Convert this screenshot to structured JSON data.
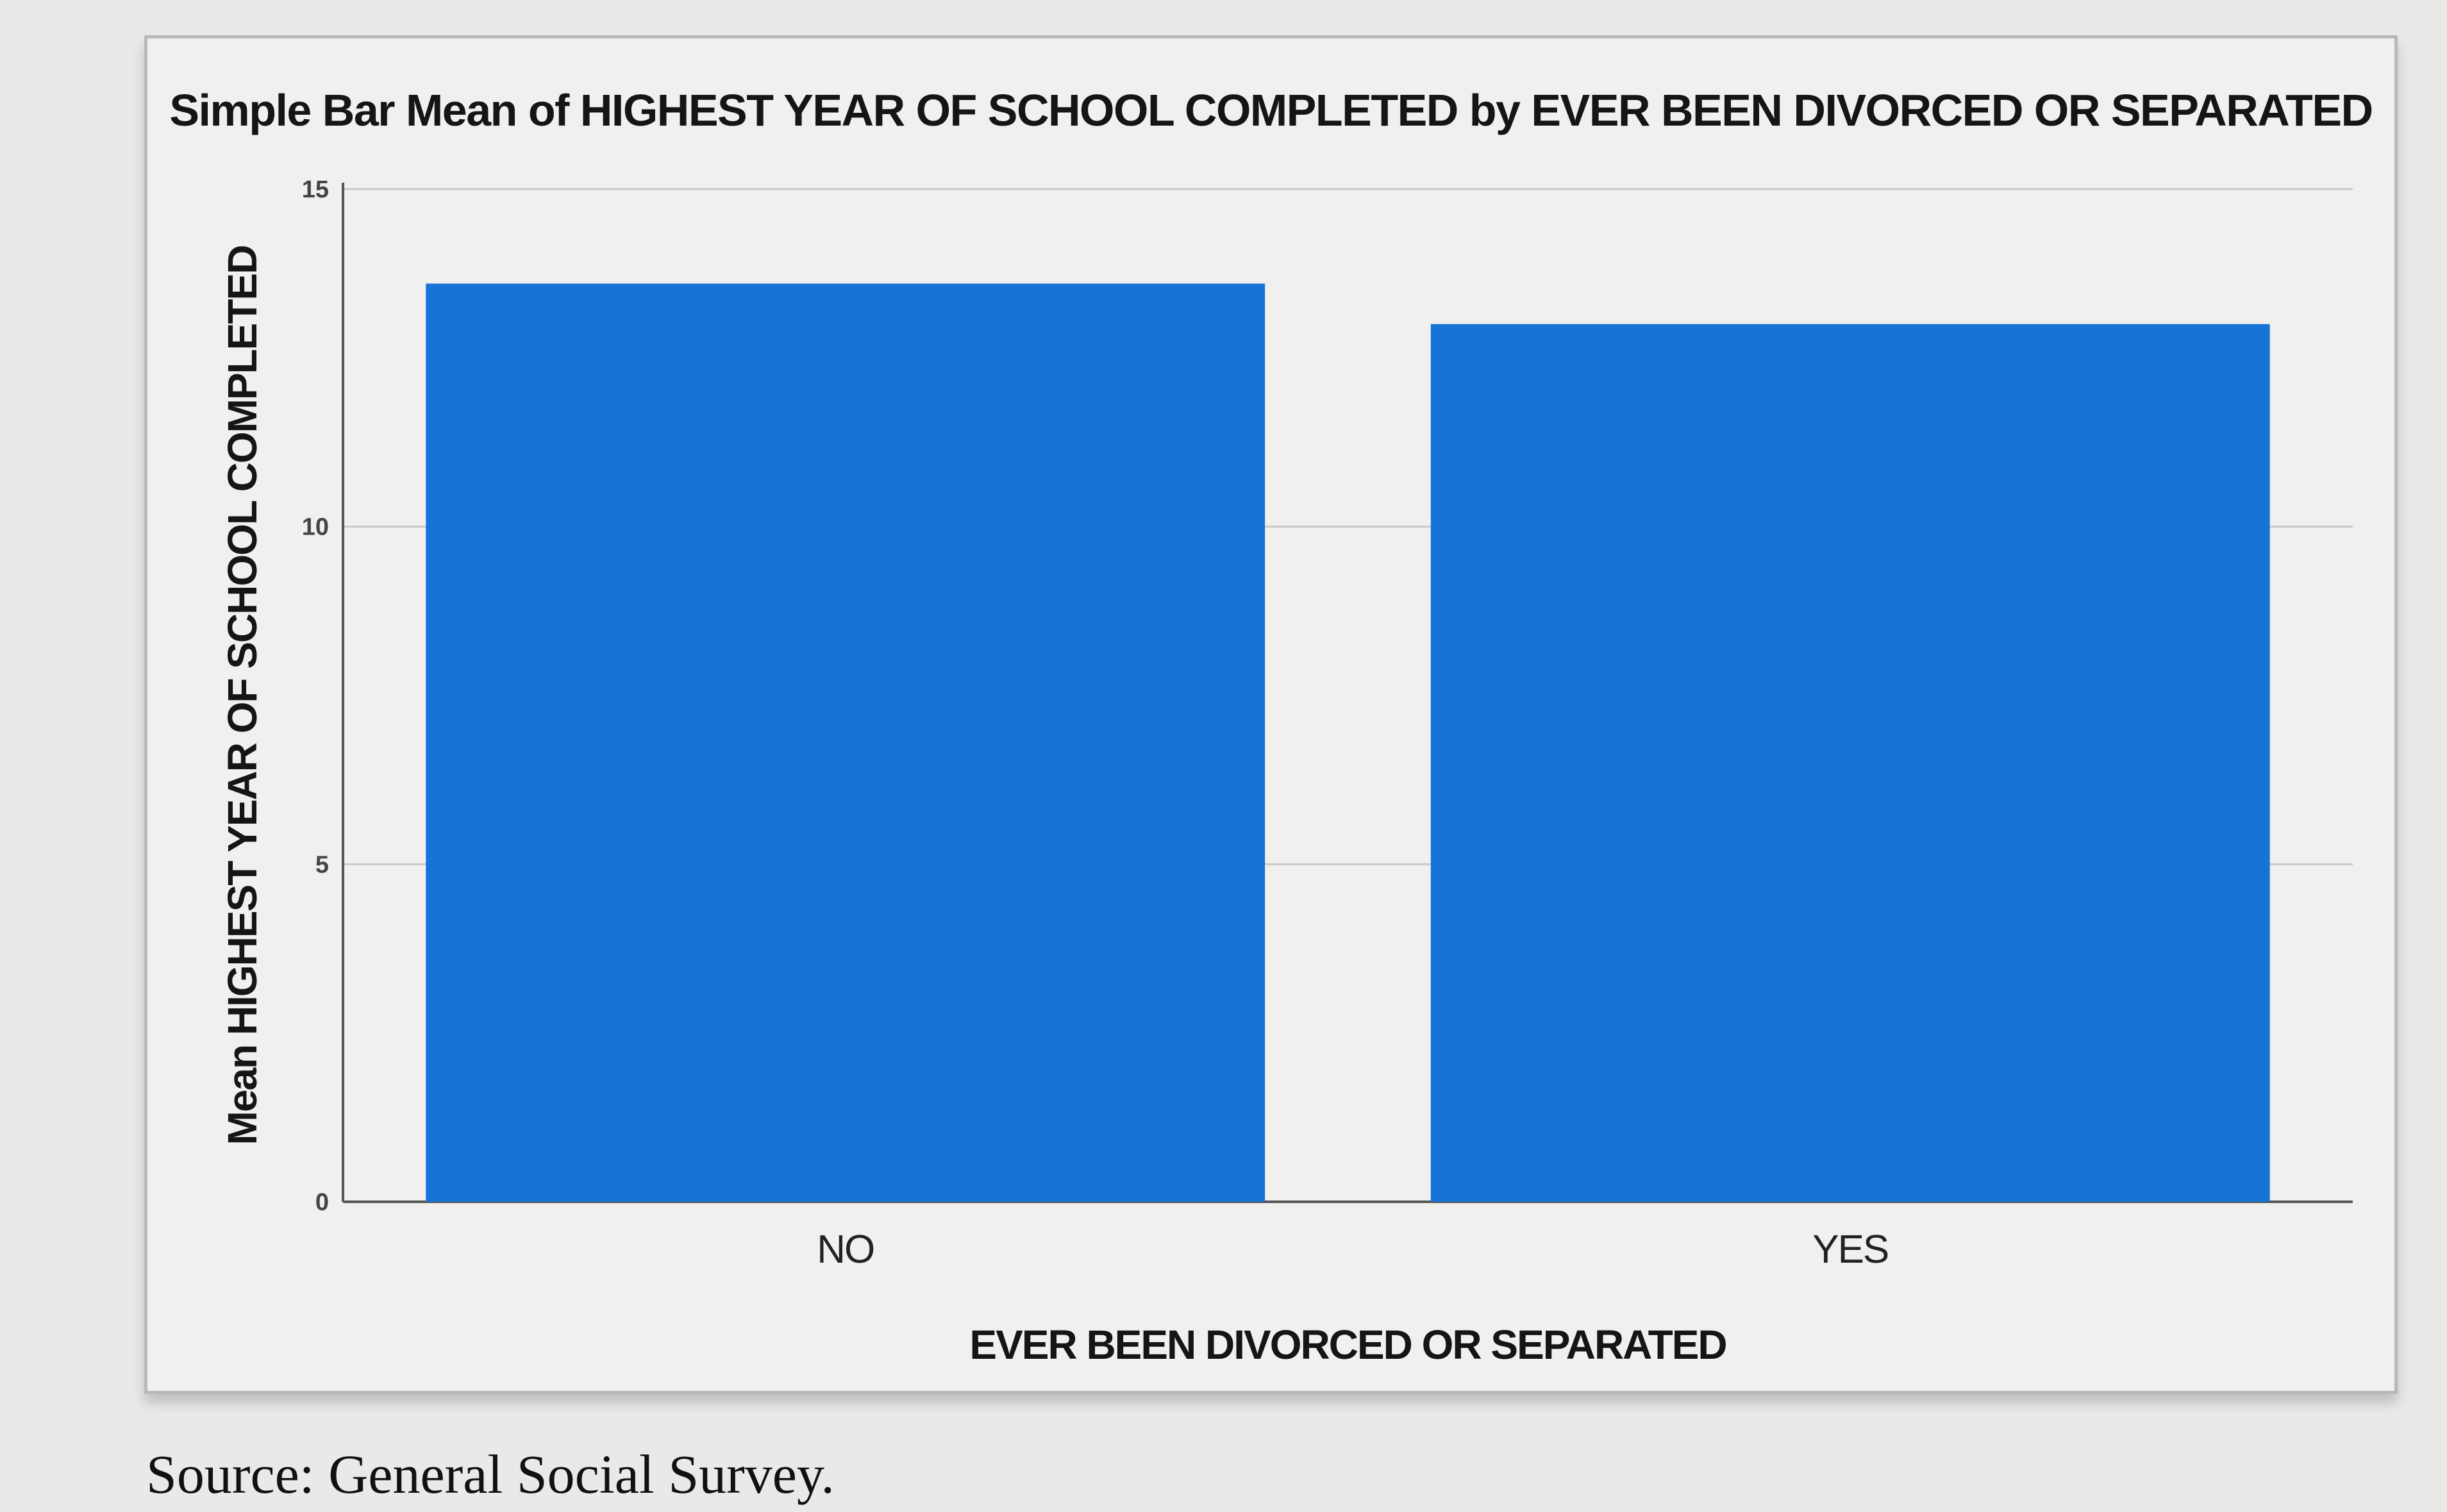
{
  "chart_data": {
    "type": "bar",
    "title": "Simple Bar Mean of HIGHEST YEAR OF SCHOOL COMPLETED by EVER BEEN DIVORCED OR SEPARATED",
    "xlabel": "EVER BEEN DIVORCED OR SEPARATED",
    "ylabel": "Mean HIGHEST YEAR OF SCHOOL COMPLETED",
    "categories": [
      "NO",
      "YES"
    ],
    "values": [
      13.6,
      13.0
    ],
    "ylim": [
      0,
      15
    ],
    "yticks": [
      0,
      5,
      10,
      15
    ],
    "grid": true,
    "legend": "none",
    "bar_color": "#1674d8"
  },
  "source": "Source: General Social Survey."
}
